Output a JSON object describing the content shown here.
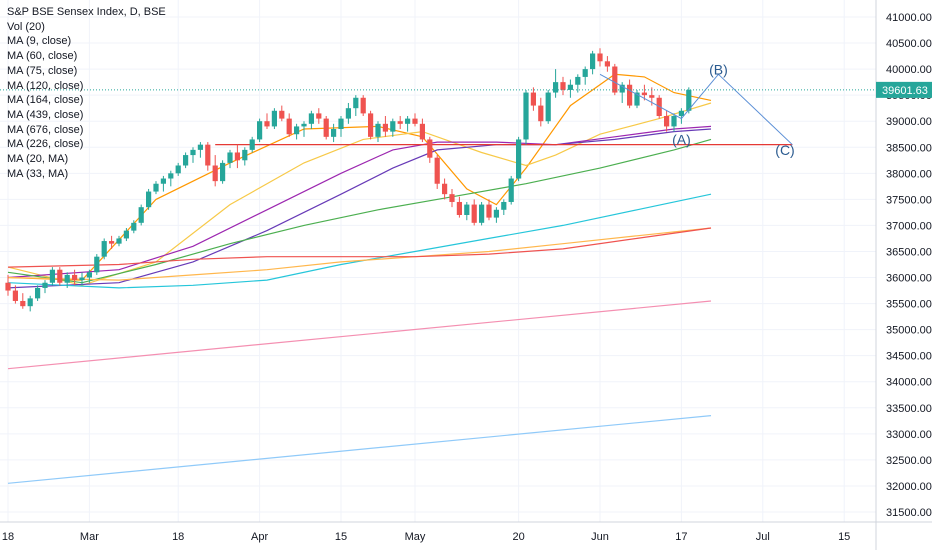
{
  "chart_data": {
    "type": "candlestick",
    "title": "S&P BSE Sensex Index, D, BSE",
    "indicators": [
      "Vol (20)",
      "MA (9, close)",
      "MA (60, close)",
      "MA (75, close)",
      "MA (120, close)",
      "MA (164, close)",
      "MA (439, close)",
      "MA (676, close)",
      "MA (226, close)",
      "MA (20, MA)",
      "MA (33, MA)"
    ],
    "last_price_label": "39601.63",
    "y_ticks": [
      "41000.00",
      "40500.00",
      "40000.00",
      "39500.00",
      "39000.00",
      "38500.00",
      "38000.00",
      "37500.00",
      "37000.00",
      "36500.00",
      "36000.00",
      "35500.00",
      "35000.00",
      "34500.00",
      "34000.00",
      "33500.00",
      "33000.00",
      "32500.00",
      "32000.00",
      "31500.00"
    ],
    "ylim": [
      31300,
      41200
    ],
    "x_ticks": [
      {
        "label": "18",
        "day": 0
      },
      {
        "label": "Mar",
        "day": 11
      },
      {
        "label": "18",
        "day": 23
      },
      {
        "label": "Apr",
        "day": 34
      },
      {
        "label": "15",
        "day": 45
      },
      {
        "label": "May",
        "day": 55
      },
      {
        "label": "20",
        "day": 69
      },
      {
        "label": "Jun",
        "day": 80
      },
      {
        "label": "17",
        "day": 91
      },
      {
        "label": "Jul",
        "day": 102
      },
      {
        "label": "15",
        "day": 113
      }
    ],
    "candles": [
      [
        35900,
        36050,
        35650,
        35750
      ],
      [
        35750,
        35850,
        35500,
        35550
      ],
      [
        35550,
        35700,
        35400,
        35450
      ],
      [
        35450,
        35650,
        35350,
        35600
      ],
      [
        35600,
        35850,
        35550,
        35800
      ],
      [
        35800,
        35950,
        35700,
        35900
      ],
      [
        35900,
        36200,
        35850,
        36150
      ],
      [
        36150,
        36200,
        35850,
        35900
      ],
      [
        35900,
        36100,
        35800,
        36050
      ],
      [
        36050,
        36150,
        35850,
        35950
      ],
      [
        35950,
        36100,
        35850,
        36000
      ],
      [
        36000,
        36150,
        35900,
        36100
      ],
      [
        36100,
        36450,
        36050,
        36400
      ],
      [
        36400,
        36750,
        36350,
        36700
      ],
      [
        36700,
        36800,
        36550,
        36650
      ],
      [
        36650,
        36800,
        36600,
        36750
      ],
      [
        36750,
        36950,
        36700,
        36900
      ],
      [
        36900,
        37100,
        36850,
        37050
      ],
      [
        37050,
        37400,
        37000,
        37350
      ],
      [
        37350,
        37700,
        37300,
        37650
      ],
      [
        37650,
        37850,
        37600,
        37800
      ],
      [
        37800,
        37950,
        37650,
        37900
      ],
      [
        37900,
        38050,
        37750,
        38000
      ],
      [
        38000,
        38200,
        37950,
        38150
      ],
      [
        38150,
        38400,
        38100,
        38350
      ],
      [
        38350,
        38500,
        38200,
        38450
      ],
      [
        38450,
        38600,
        38300,
        38550
      ],
      [
        38550,
        38600,
        38050,
        38150
      ],
      [
        38150,
        38350,
        37750,
        37850
      ],
      [
        37850,
        38250,
        37800,
        38200
      ],
      [
        38200,
        38450,
        38100,
        38400
      ],
      [
        38400,
        38550,
        38100,
        38250
      ],
      [
        38250,
        38500,
        38150,
        38450
      ],
      [
        38450,
        38700,
        38400,
        38650
      ],
      [
        38650,
        39050,
        38600,
        39000
      ],
      [
        39000,
        39150,
        38850,
        38900
      ],
      [
        38900,
        39250,
        38850,
        39200
      ],
      [
        39200,
        39300,
        39000,
        39050
      ],
      [
        39050,
        39150,
        38700,
        38750
      ],
      [
        38750,
        38950,
        38650,
        38900
      ],
      [
        38900,
        39000,
        38700,
        38950
      ],
      [
        38950,
        39200,
        38850,
        39150
      ],
      [
        39150,
        39250,
        38950,
        39050
      ],
      [
        39050,
        39100,
        38650,
        38700
      ],
      [
        38700,
        38950,
        38600,
        38850
      ],
      [
        38850,
        39100,
        38700,
        39050
      ],
      [
        39050,
        39350,
        38950,
        39250
      ],
      [
        39250,
        39500,
        39100,
        39450
      ],
      [
        39450,
        39500,
        39100,
        39150
      ],
      [
        39150,
        39200,
        38650,
        38700
      ],
      [
        38700,
        39000,
        38600,
        38950
      ],
      [
        38950,
        39100,
        38700,
        38800
      ],
      [
        38800,
        39050,
        38700,
        39000
      ],
      [
        39000,
        39100,
        38850,
        38950
      ],
      [
        38950,
        39100,
        38800,
        39050
      ],
      [
        39050,
        39150,
        38900,
        38950
      ],
      [
        38950,
        39050,
        38600,
        38650
      ],
      [
        38650,
        38700,
        38200,
        38300
      ],
      [
        38300,
        38350,
        37700,
        37800
      ],
      [
        37800,
        37900,
        37500,
        37600
      ],
      [
        37600,
        37700,
        37350,
        37450
      ],
      [
        37450,
        37550,
        37150,
        37200
      ],
      [
        37200,
        37450,
        37100,
        37400
      ],
      [
        37400,
        37500,
        37000,
        37050
      ],
      [
        37050,
        37450,
        37000,
        37400
      ],
      [
        37400,
        37500,
        37100,
        37150
      ],
      [
        37150,
        37350,
        37050,
        37300
      ],
      [
        37300,
        37500,
        37200,
        37450
      ],
      [
        37450,
        37950,
        37400,
        37900
      ],
      [
        37900,
        38700,
        37850,
        38650
      ],
      [
        38650,
        39600,
        38550,
        39550
      ],
      [
        39550,
        39650,
        39200,
        39300
      ],
      [
        39300,
        39450,
        38900,
        39000
      ],
      [
        39000,
        39600,
        38950,
        39550
      ],
      [
        39550,
        40000,
        39450,
        39750
      ],
      [
        39750,
        39850,
        39500,
        39600
      ],
      [
        39600,
        39800,
        39450,
        39700
      ],
      [
        39700,
        39900,
        39550,
        39850
      ],
      [
        39850,
        40050,
        39700,
        40000
      ],
      [
        40000,
        40350,
        39900,
        40300
      ],
      [
        40300,
        40400,
        40050,
        40150
      ],
      [
        40150,
        40250,
        39950,
        40050
      ],
      [
        40050,
        40100,
        39500,
        39550
      ],
      [
        39550,
        39750,
        39350,
        39700
      ],
      [
        39700,
        39800,
        39250,
        39300
      ],
      [
        39300,
        39600,
        39250,
        39550
      ],
      [
        39550,
        39700,
        39400,
        39500
      ],
      [
        39500,
        39650,
        39300,
        39450
      ],
      [
        39450,
        39500,
        39050,
        39100
      ],
      [
        39100,
        39200,
        38800,
        38900
      ],
      [
        38900,
        39150,
        38800,
        39100
      ],
      [
        39100,
        39250,
        38950,
        39200
      ],
      [
        39200,
        39650,
        39150,
        39601.63
      ]
    ],
    "moving_averages": [
      {
        "name": "MA (9, close)",
        "color": "#ff9800",
        "points": [
          [
            0,
            36000
          ],
          [
            10,
            35950
          ],
          [
            20,
            37500
          ],
          [
            30,
            38200
          ],
          [
            40,
            38850
          ],
          [
            50,
            38900
          ],
          [
            56,
            38700
          ],
          [
            62,
            37700
          ],
          [
            66,
            37400
          ],
          [
            70,
            38100
          ],
          [
            76,
            39300
          ],
          [
            82,
            39900
          ],
          [
            86,
            39850
          ],
          [
            90,
            39550
          ],
          [
            95,
            39400
          ]
        ]
      },
      {
        "name": "MA (20, MA)",
        "color": "#f7c948",
        "points": [
          [
            0,
            36200
          ],
          [
            10,
            35850
          ],
          [
            20,
            36300
          ],
          [
            30,
            37400
          ],
          [
            40,
            38200
          ],
          [
            48,
            38650
          ],
          [
            56,
            38800
          ],
          [
            64,
            38400
          ],
          [
            70,
            38150
          ],
          [
            74,
            38350
          ],
          [
            80,
            38750
          ],
          [
            88,
            39050
          ],
          [
            95,
            39350
          ]
        ]
      },
      {
        "name": "MA (60, close)",
        "color": "#9c27b0",
        "points": [
          [
            0,
            36000
          ],
          [
            15,
            36150
          ],
          [
            25,
            36600
          ],
          [
            35,
            37300
          ],
          [
            45,
            38000
          ],
          [
            52,
            38450
          ],
          [
            58,
            38600
          ],
          [
            66,
            38600
          ],
          [
            74,
            38550
          ],
          [
            82,
            38700
          ],
          [
            90,
            38850
          ],
          [
            95,
            38900
          ]
        ]
      },
      {
        "name": "MA (75, close)",
        "color": "#673ab7",
        "points": [
          [
            0,
            35800
          ],
          [
            15,
            35900
          ],
          [
            25,
            36300
          ],
          [
            35,
            36900
          ],
          [
            45,
            37600
          ],
          [
            52,
            38100
          ],
          [
            58,
            38450
          ],
          [
            66,
            38550
          ],
          [
            74,
            38550
          ],
          [
            82,
            38650
          ],
          [
            90,
            38800
          ],
          [
            95,
            38850
          ]
        ]
      },
      {
        "name": "MA (120, close)",
        "color": "#4caf50",
        "points": [
          [
            0,
            36100
          ],
          [
            10,
            35900
          ],
          [
            20,
            36250
          ],
          [
            30,
            36650
          ],
          [
            40,
            37000
          ],
          [
            50,
            37300
          ],
          [
            60,
            37550
          ],
          [
            70,
            37800
          ],
          [
            80,
            38100
          ],
          [
            90,
            38450
          ],
          [
            95,
            38650
          ]
        ]
      },
      {
        "name": "MA (164, close)",
        "color": "#26c6da",
        "points": [
          [
            0,
            35900
          ],
          [
            15,
            35800
          ],
          [
            25,
            35850
          ],
          [
            35,
            35950
          ],
          [
            45,
            36250
          ],
          [
            55,
            36500
          ],
          [
            65,
            36750
          ],
          [
            75,
            37000
          ],
          [
            85,
            37300
          ],
          [
            95,
            37600
          ]
        ]
      },
      {
        "name": "MA (226, close)",
        "color": "#ffb74d",
        "points": [
          [
            0,
            36000
          ],
          [
            15,
            35950
          ],
          [
            25,
            36050
          ],
          [
            35,
            36150
          ],
          [
            45,
            36300
          ],
          [
            55,
            36400
          ],
          [
            65,
            36500
          ],
          [
            75,
            36650
          ],
          [
            85,
            36800
          ],
          [
            95,
            36950
          ]
        ]
      },
      {
        "name": "MA (33, MA)",
        "color": "#ef5350",
        "points": [
          [
            0,
            36200
          ],
          [
            15,
            36250
          ],
          [
            25,
            36350
          ],
          [
            35,
            36400
          ],
          [
            45,
            36400
          ],
          [
            55,
            36400
          ],
          [
            65,
            36450
          ],
          [
            75,
            36550
          ],
          [
            85,
            36750
          ],
          [
            95,
            36950
          ]
        ]
      },
      {
        "name": "MA (439, close)",
        "color": "#f48fb1",
        "points": [
          [
            0,
            34250
          ],
          [
            95,
            35550
          ]
        ]
      },
      {
        "name": "MA (676, close)",
        "color": "#90caf9",
        "points": [
          [
            0,
            32050
          ],
          [
            95,
            33350
          ]
        ]
      }
    ],
    "horizontal_line": {
      "value": 38550,
      "from_day": 28,
      "to_day": 106,
      "color": "#e53935"
    },
    "wave_labels": [
      {
        "label": "(A)",
        "day": 91,
        "value": 38550
      },
      {
        "label": "(B)",
        "day": 96,
        "value": 39900
      },
      {
        "label": "(C)",
        "day": 105,
        "value": 38350
      }
    ],
    "projection_path": [
      [
        80,
        39900
      ],
      [
        91,
        39050
      ],
      [
        96,
        39900
      ],
      [
        106,
        38550
      ]
    ],
    "colors": {
      "up": "#26a69a",
      "down": "#ef5350",
      "wave": "#2962ff",
      "wave_text": "#2a5a8f",
      "price_tag": "#26a69a"
    }
  }
}
